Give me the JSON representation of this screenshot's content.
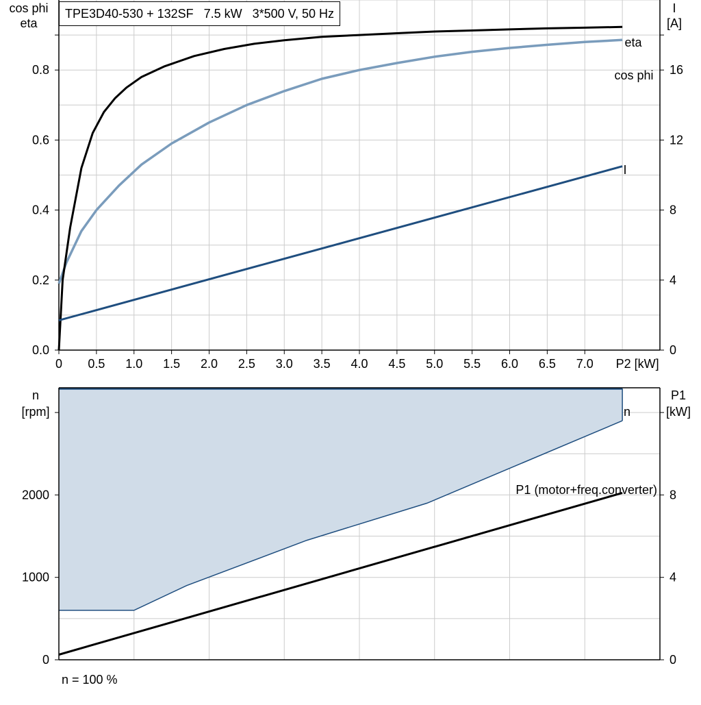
{
  "title": "TPE3D40-530 + 132SF   7.5 kW   3*500 V, 50 Hz",
  "footnote": "n = 100 %",
  "colors": {
    "eta": "#000000",
    "cos_phi": "#7a9cbc",
    "current": "#1f4e7f",
    "speed": "#1f4e7f",
    "speed_fill": "#d0dce8",
    "p1": "#000000",
    "grid": "#cccccc",
    "axis": "#000000"
  },
  "chart_data": [
    {
      "type": "line",
      "name": "efficiency-chart",
      "ylabel_left": [
        "cos phi",
        "eta"
      ],
      "ylabel_right": [
        "I",
        "[A]"
      ],
      "xlabel": "P2 [kW]",
      "xlim": [
        0,
        8
      ],
      "ylim_left": [
        0,
        1.0
      ],
      "ylim_right": [
        0,
        20
      ],
      "x_ticks": [
        "0",
        "0.5",
        "1.0",
        "1.5",
        "2.0",
        "2.5",
        "3.0",
        "3.5",
        "4.0",
        "4.5",
        "5.0",
        "5.5",
        "6.0",
        "6.5",
        "7.0"
      ],
      "x_unit_label": "P2 [kW]",
      "y_ticks_left": [
        "0.0",
        "0.2",
        "0.4",
        "0.6",
        "0.8"
      ],
      "y_ticks_right": [
        "0",
        "4",
        "8",
        "12",
        "16"
      ],
      "grid": true,
      "series": [
        {
          "name": "eta",
          "axis": "left",
          "x": [
            0,
            0.05,
            0.15,
            0.3,
            0.45,
            0.6,
            0.75,
            0.9,
            1.1,
            1.4,
            1.8,
            2.2,
            2.6,
            3.0,
            3.5,
            4.0,
            4.5,
            5.0,
            5.5,
            6.0,
            6.5,
            7.0,
            7.5
          ],
          "y": [
            0.0,
            0.2,
            0.35,
            0.52,
            0.62,
            0.68,
            0.72,
            0.75,
            0.78,
            0.81,
            0.84,
            0.86,
            0.875,
            0.885,
            0.895,
            0.9,
            0.905,
            0.91,
            0.913,
            0.916,
            0.919,
            0.921,
            0.923
          ]
        },
        {
          "name": "cos phi",
          "axis": "left",
          "x": [
            0,
            0.1,
            0.3,
            0.5,
            0.8,
            1.1,
            1.5,
            2.0,
            2.5,
            3.0,
            3.5,
            4.0,
            4.5,
            5.0,
            5.5,
            6.0,
            6.5,
            7.0,
            7.5
          ],
          "y": [
            0.19,
            0.25,
            0.34,
            0.4,
            0.47,
            0.53,
            0.59,
            0.65,
            0.7,
            0.74,
            0.775,
            0.8,
            0.82,
            0.838,
            0.852,
            0.863,
            0.872,
            0.88,
            0.886
          ]
        },
        {
          "name": "I",
          "axis": "right",
          "x": [
            0,
            7.5
          ],
          "y": [
            1.7,
            10.5
          ]
        }
      ]
    },
    {
      "type": "area",
      "name": "speed-power-chart",
      "ylabel_left": [
        "n",
        "[rpm]"
      ],
      "ylabel_right": [
        "P1",
        "[kW]"
      ],
      "xlim": [
        0,
        8
      ],
      "ylim_left": [
        0,
        3300
      ],
      "ylim_right": [
        0,
        13.2
      ],
      "y_ticks_left": [
        "0",
        "1000",
        "2000"
      ],
      "y_ticks_right": [
        "0",
        "4",
        "8"
      ],
      "grid": true,
      "series": [
        {
          "name": "n",
          "axis": "left",
          "upper": {
            "x": [
              0,
              7.5
            ],
            "y": [
              3290,
              3290
            ]
          },
          "lower": {
            "x": [
              0,
              1.0,
              1.7,
              3.3,
              4.9,
              7.5
            ],
            "y": [
              600,
              600,
              900,
              1450,
              1900,
              2900
            ]
          }
        },
        {
          "name": "P1 (motor+freq.converter)",
          "axis": "right",
          "x": [
            0,
            7.5
          ],
          "y": [
            0.25,
            8.1
          ]
        }
      ]
    }
  ]
}
